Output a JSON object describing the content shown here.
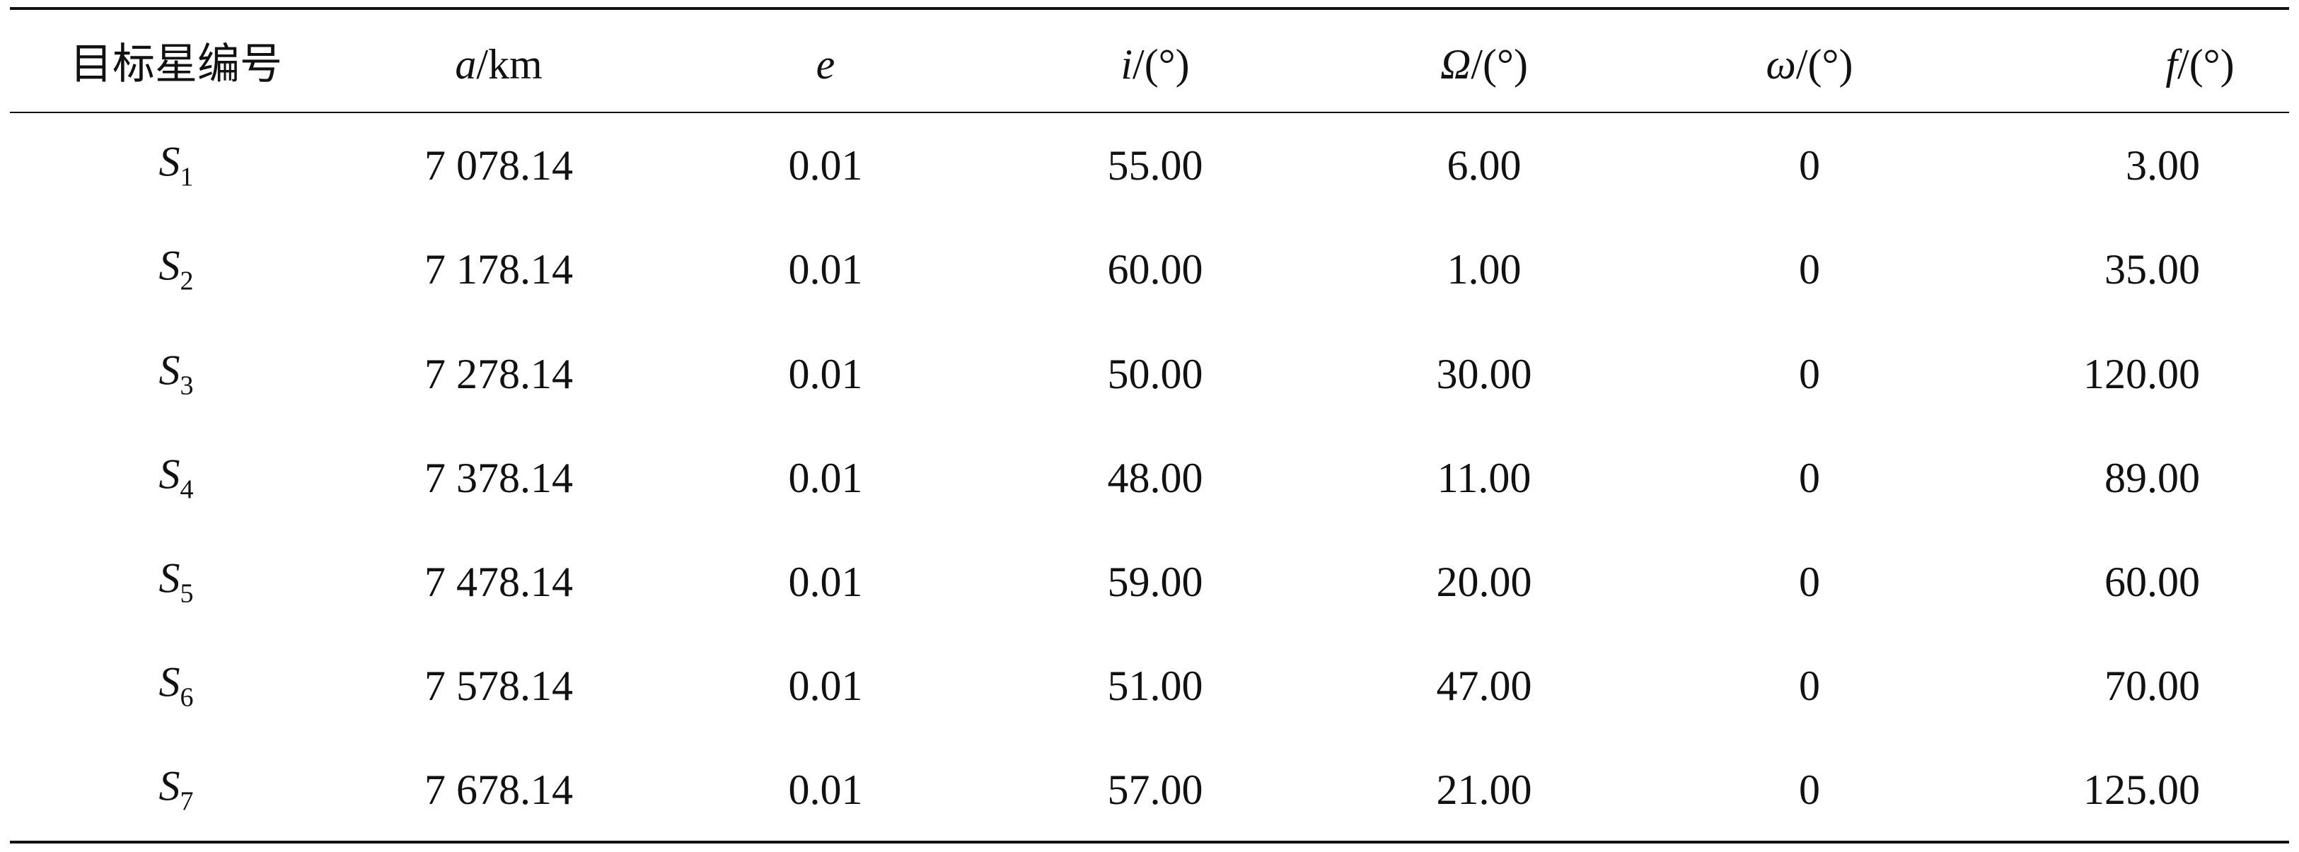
{
  "table": {
    "header": [
      "目标星编号",
      {
        "symbol": "a",
        "unit": "/km"
      },
      {
        "symbol": "e"
      },
      {
        "symbol": "i",
        "unit": "/(°)"
      },
      {
        "symbol": "Ω",
        "unit": "/(°)"
      },
      {
        "symbol": "ω",
        "unit": "/(°)"
      },
      {
        "symbol": "f",
        "unit": "/(°)"
      }
    ],
    "rows": [
      [
        {
          "symbol": "S",
          "sub": "1"
        },
        "7 078.14",
        "0.01",
        "55.00",
        "6.00",
        "0",
        "3.00"
      ],
      [
        {
          "symbol": "S",
          "sub": "2"
        },
        "7 178.14",
        "0.01",
        "60.00",
        "1.00",
        "0",
        "35.00"
      ],
      [
        {
          "symbol": "S",
          "sub": "3"
        },
        "7 278.14",
        "0.01",
        "50.00",
        "30.00",
        "0",
        "120.00"
      ],
      [
        {
          "symbol": "S",
          "sub": "4"
        },
        "7 378.14",
        "0.01",
        "48.00",
        "11.00",
        "0",
        "89.00"
      ],
      [
        {
          "symbol": "S",
          "sub": "5"
        },
        "7 478.14",
        "0.01",
        "59.00",
        "20.00",
        "0",
        "60.00"
      ],
      [
        {
          "symbol": "S",
          "sub": "6"
        },
        "7 578.14",
        "0.01",
        "51.00",
        "47.00",
        "0",
        "70.00"
      ],
      [
        {
          "symbol": "S",
          "sub": "7"
        },
        "7 678.14",
        "0.01",
        "57.00",
        "21.00",
        "0",
        "125.00"
      ]
    ]
  }
}
